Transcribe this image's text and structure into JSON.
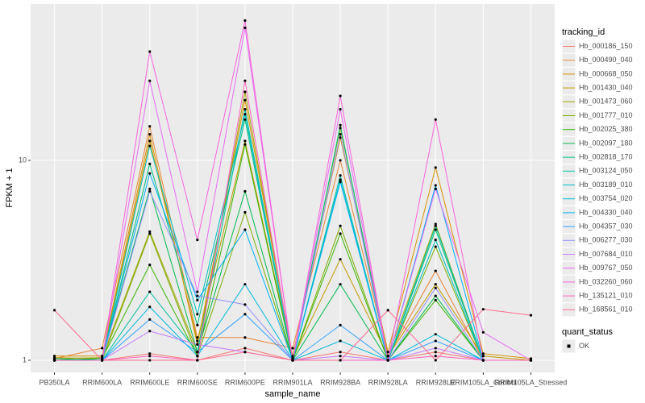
{
  "chart_data": {
    "type": "line",
    "log_y": true,
    "grid": true,
    "legend_position": "right",
    "x_label": "sample_name",
    "y_label": "FPKM + 1",
    "legend_title": "tracking_id",
    "shape_legend": {
      "title": "quant_status",
      "labels": [
        "OK"
      ]
    },
    "point_color": "#000000",
    "panel_color": "#ebebeb",
    "categories": [
      "PB350LA",
      "RRIM600LA",
      "RRIM600LE",
      "RRIM600SE",
      "RRIM600PE",
      "RRIM901LA",
      "RRIM928BA",
      "RRIM928LA",
      "RRIM928LE",
      "RRIM105LA_Control",
      "RRIM105LA_Stressed"
    ],
    "ylim": [
      0.87,
      60.5
    ],
    "yticks": [
      1,
      10
    ],
    "series": [
      {
        "name": "Hb_000186_150",
        "color": "#F8766D",
        "values": [
          1.0,
          1.0,
          1.08,
          1.0,
          1.15,
          1.0,
          1.1,
          1.0,
          1.1,
          1.0,
          1.0
        ]
      },
      {
        "name": "Hb_000490_040",
        "color": "#EA8331",
        "values": [
          1.02,
          1.15,
          14.8,
          1.3,
          1.3,
          1.15,
          10,
          1.05,
          2.8,
          1.0,
          1.0
        ]
      },
      {
        "name": "Hb_000668_050",
        "color": "#D89000",
        "values": [
          1.05,
          1.05,
          13.5,
          1.2,
          20,
          1.05,
          13,
          1.1,
          9.2,
          1.08,
          1.02
        ]
      },
      {
        "name": "Hb_001430_040",
        "color": "#C09B00",
        "values": [
          1.03,
          1.02,
          12.5,
          1.25,
          12.5,
          1.02,
          3.2,
          1.05,
          2.4,
          1.05,
          1.0
        ]
      },
      {
        "name": "Hb_001473_060",
        "color": "#A3A500",
        "values": [
          1.02,
          1.03,
          4.4,
          1.1,
          22,
          1.03,
          14.5,
          1.05,
          4.8,
          1.0,
          1.0
        ]
      },
      {
        "name": "Hb_001777_010",
        "color": "#7CAE00",
        "values": [
          1.0,
          1.0,
          4.3,
          1.05,
          5.5,
          1.0,
          4.7,
          1.0,
          3.7,
          1.0,
          1.0
        ]
      },
      {
        "name": "Hb_002025_380",
        "color": "#39B600",
        "values": [
          1.0,
          1.02,
          3.0,
          1.05,
          12,
          1.0,
          4.3,
          1.0,
          2.0,
          1.0,
          1.0
        ]
      },
      {
        "name": "Hb_002097_180",
        "color": "#00BB4E",
        "values": [
          1.0,
          1.02,
          7.2,
          1.1,
          7.0,
          1.0,
          2.4,
          1.0,
          2.1,
          1.0,
          1.0
        ]
      },
      {
        "name": "Hb_002818_170",
        "color": "#00BF7D",
        "values": [
          1.02,
          1.0,
          9.6,
          1.5,
          16,
          1.0,
          15,
          1.0,
          4.5,
          1.0,
          1.0
        ]
      },
      {
        "name": "Hb_003124_050",
        "color": "#00C1A3",
        "values": [
          1.0,
          1.0,
          2.2,
          1.1,
          18,
          1.0,
          8.4,
          1.0,
          4.7,
          1.0,
          1.0
        ]
      },
      {
        "name": "Hb_003189_010",
        "color": "#00BFC4",
        "values": [
          1.0,
          1.0,
          11.8,
          1.7,
          17,
          1.0,
          8.0,
          1.0,
          4.0,
          1.0,
          1.0
        ]
      },
      {
        "name": "Hb_003754_020",
        "color": "#00BAE0",
        "values": [
          1.0,
          1.0,
          1.85,
          1.05,
          2.4,
          1.0,
          1.25,
          1.0,
          1.35,
          1.0,
          1.0
        ]
      },
      {
        "name": "Hb_004330_040",
        "color": "#00B0F6",
        "values": [
          1.0,
          1.0,
          8.6,
          2.0,
          4.5,
          1.0,
          7.8,
          1.0,
          7.5,
          1.0,
          1.0
        ]
      },
      {
        "name": "Hb_004357_030",
        "color": "#35A2FF",
        "values": [
          1.0,
          1.0,
          1.6,
          1.1,
          1.7,
          1.0,
          1.5,
          1.0,
          1.25,
          1.0,
          1.0
        ]
      },
      {
        "name": "Hb_006277_030",
        "color": "#9590FF",
        "values": [
          1.0,
          1.0,
          7.0,
          2.1,
          1.9,
          1.0,
          13.5,
          1.0,
          2.3,
          1.0,
          1.0
        ]
      },
      {
        "name": "Hb_007684_010",
        "color": "#C77CFF",
        "values": [
          1.0,
          1.0,
          1.4,
          1.2,
          1.1,
          1.0,
          1.05,
          1.0,
          1.15,
          1.0,
          1.0
        ]
      },
      {
        "name": "Hb_009767_050",
        "color": "#E76BF3",
        "values": [
          1.0,
          1.0,
          25,
          2.2,
          46,
          1.0,
          18,
          1.0,
          7.2,
          1.38,
          1.0
        ]
      },
      {
        "name": "Hb_032260_060",
        "color": "#FA62DB",
        "values": [
          1.0,
          1.0,
          35,
          4.0,
          50,
          1.0,
          21,
          1.0,
          16,
          1.0,
          1.0
        ]
      },
      {
        "name": "Hb_135121_010",
        "color": "#FF62BC",
        "values": [
          1.0,
          1.0,
          1.05,
          1.0,
          25,
          1.0,
          1.0,
          1.0,
          1.05,
          1.0,
          1.0
        ]
      },
      {
        "name": "Hb_168561_010",
        "color": "#FF6C91",
        "values": [
          1.78,
          1.0,
          1.0,
          1.0,
          1.1,
          1.0,
          1.0,
          1.78,
          1.0,
          1.8,
          1.68
        ]
      }
    ]
  }
}
